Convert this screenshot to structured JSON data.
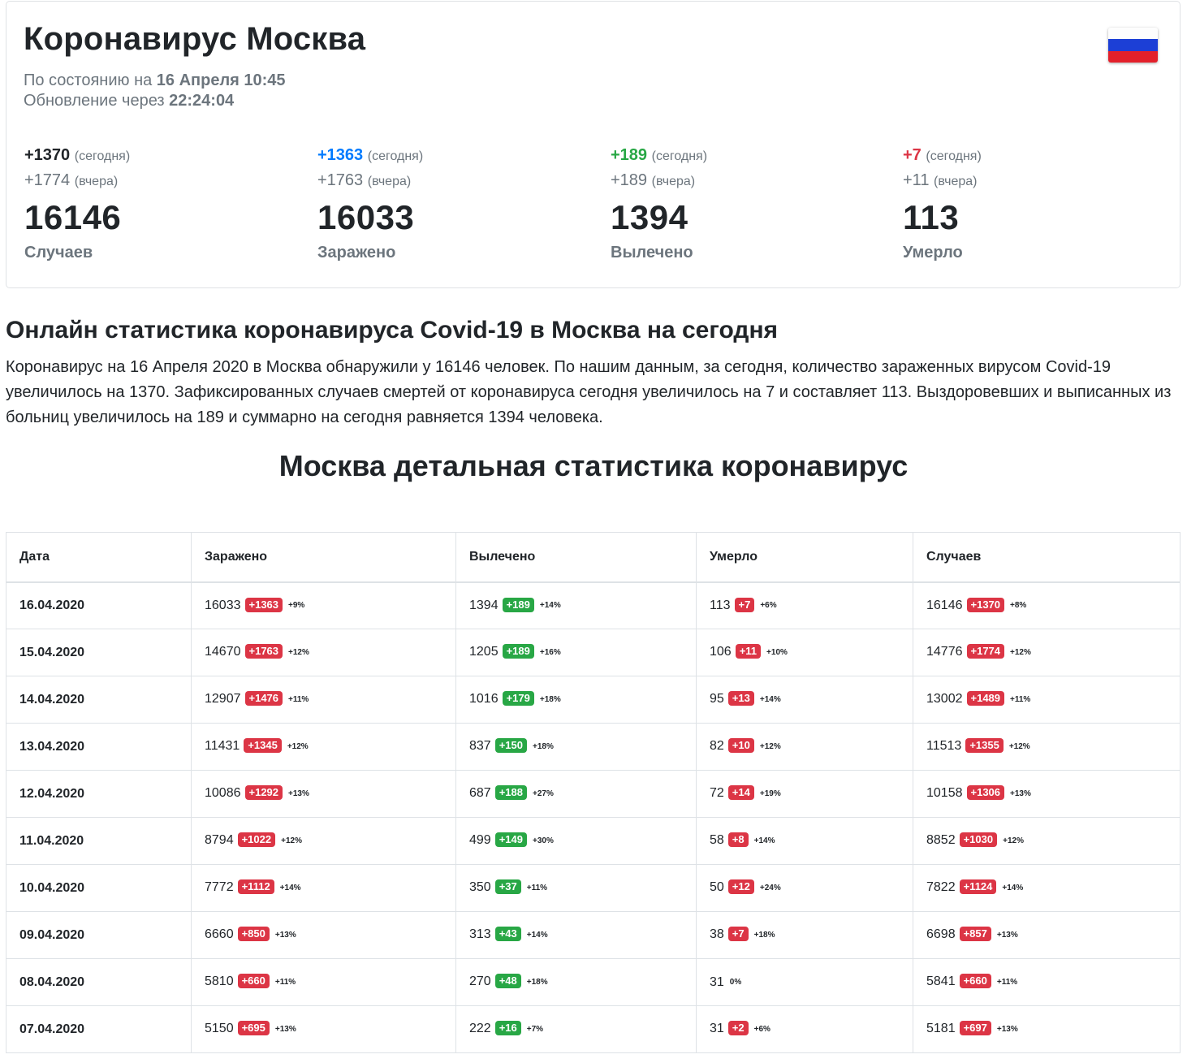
{
  "header": {
    "title": "Коронавирус Москва",
    "status_prefix": "По состоянию на ",
    "status_date": "16 Апреля 10:45",
    "update_prefix": "Обновление через ",
    "update_timer": "22:24:04"
  },
  "colors": {
    "dark": "#212529",
    "blue": "#007bff",
    "green": "#28a745",
    "red": "#dc3545",
    "muted": "#6c757d"
  },
  "stats": [
    {
      "today": "+1370",
      "today_label": "(сегодня)",
      "yesterday": "+1774",
      "yesterday_label": "(вчера)",
      "total": "16146",
      "name": "Случаев"
    },
    {
      "today": "+1363",
      "today_label": "(сегодня)",
      "yesterday": "+1763",
      "yesterday_label": "(вчера)",
      "total": "16033",
      "name": "Заражено"
    },
    {
      "today": "+189",
      "today_label": "(сегодня)",
      "yesterday": "+189",
      "yesterday_label": "(вчера)",
      "total": "1394",
      "name": "Вылечено"
    },
    {
      "today": "+7",
      "today_label": "(сегодня)",
      "yesterday": "+11",
      "yesterday_label": "(вчера)",
      "total": "113",
      "name": "Умерло"
    }
  ],
  "section": {
    "heading": "Онлайн статистика коронавируса Covid-19 в Москва на сегодня",
    "paragraph": "Коронавирус на 16 Апреля 2020 в Москва обнаружили у 16146 человек. По нашим данным, за сегодня, количество зараженных вирусом Covid-19 увеличилось на 1370. Зафиксированных случаев смертей от коронавируса сегодня увеличилось на 7 и составляет 113. Выздоровевших и выписанных из больниц увеличилось на 189 и суммарно на сегодня равняется 1394 человека.",
    "table_heading": "Москва детальная статистика коронавирус"
  },
  "table": {
    "headers": [
      "Дата",
      "Заражено",
      "Вылечено",
      "Умерло",
      "Случаев"
    ],
    "rows": [
      {
        "date": "16.04.2020",
        "infected": "16033",
        "infected_delta": "+1363",
        "infected_pct": "+9%",
        "recovered": "1394",
        "recovered_delta": "+189",
        "recovered_pct": "+14%",
        "died": "113",
        "died_delta": "+7",
        "died_pct": "+6%",
        "cases": "16146",
        "cases_delta": "+1370",
        "cases_pct": "+8%"
      },
      {
        "date": "15.04.2020",
        "infected": "14670",
        "infected_delta": "+1763",
        "infected_pct": "+12%",
        "recovered": "1205",
        "recovered_delta": "+189",
        "recovered_pct": "+16%",
        "died": "106",
        "died_delta": "+11",
        "died_pct": "+10%",
        "cases": "14776",
        "cases_delta": "+1774",
        "cases_pct": "+12%"
      },
      {
        "date": "14.04.2020",
        "infected": "12907",
        "infected_delta": "+1476",
        "infected_pct": "+11%",
        "recovered": "1016",
        "recovered_delta": "+179",
        "recovered_pct": "+18%",
        "died": "95",
        "died_delta": "+13",
        "died_pct": "+14%",
        "cases": "13002",
        "cases_delta": "+1489",
        "cases_pct": "+11%"
      },
      {
        "date": "13.04.2020",
        "infected": "11431",
        "infected_delta": "+1345",
        "infected_pct": "+12%",
        "recovered": "837",
        "recovered_delta": "+150",
        "recovered_pct": "+18%",
        "died": "82",
        "died_delta": "+10",
        "died_pct": "+12%",
        "cases": "11513",
        "cases_delta": "+1355",
        "cases_pct": "+12%"
      },
      {
        "date": "12.04.2020",
        "infected": "10086",
        "infected_delta": "+1292",
        "infected_pct": "+13%",
        "recovered": "687",
        "recovered_delta": "+188",
        "recovered_pct": "+27%",
        "died": "72",
        "died_delta": "+14",
        "died_pct": "+19%",
        "cases": "10158",
        "cases_delta": "+1306",
        "cases_pct": "+13%"
      },
      {
        "date": "11.04.2020",
        "infected": "8794",
        "infected_delta": "+1022",
        "infected_pct": "+12%",
        "recovered": "499",
        "recovered_delta": "+149",
        "recovered_pct": "+30%",
        "died": "58",
        "died_delta": "+8",
        "died_pct": "+14%",
        "cases": "8852",
        "cases_delta": "+1030",
        "cases_pct": "+12%"
      },
      {
        "date": "10.04.2020",
        "infected": "7772",
        "infected_delta": "+1112",
        "infected_pct": "+14%",
        "recovered": "350",
        "recovered_delta": "+37",
        "recovered_pct": "+11%",
        "died": "50",
        "died_delta": "+12",
        "died_pct": "+24%",
        "cases": "7822",
        "cases_delta": "+1124",
        "cases_pct": "+14%"
      },
      {
        "date": "09.04.2020",
        "infected": "6660",
        "infected_delta": "+850",
        "infected_pct": "+13%",
        "recovered": "313",
        "recovered_delta": "+43",
        "recovered_pct": "+14%",
        "died": "38",
        "died_delta": "+7",
        "died_pct": "+18%",
        "cases": "6698",
        "cases_delta": "+857",
        "cases_pct": "+13%"
      },
      {
        "date": "08.04.2020",
        "infected": "5810",
        "infected_delta": "+660",
        "infected_pct": "+11%",
        "recovered": "270",
        "recovered_delta": "+48",
        "recovered_pct": "+18%",
        "died": "31",
        "died_delta": "",
        "died_pct": "0%",
        "cases": "5841",
        "cases_delta": "+660",
        "cases_pct": "+11%"
      },
      {
        "date": "07.04.2020",
        "infected": "5150",
        "infected_delta": "+695",
        "infected_pct": "+13%",
        "recovered": "222",
        "recovered_delta": "+16",
        "recovered_pct": "+7%",
        "died": "31",
        "died_delta": "+2",
        "died_pct": "+6%",
        "cases": "5181",
        "cases_delta": "+697",
        "cases_pct": "+13%"
      }
    ]
  }
}
